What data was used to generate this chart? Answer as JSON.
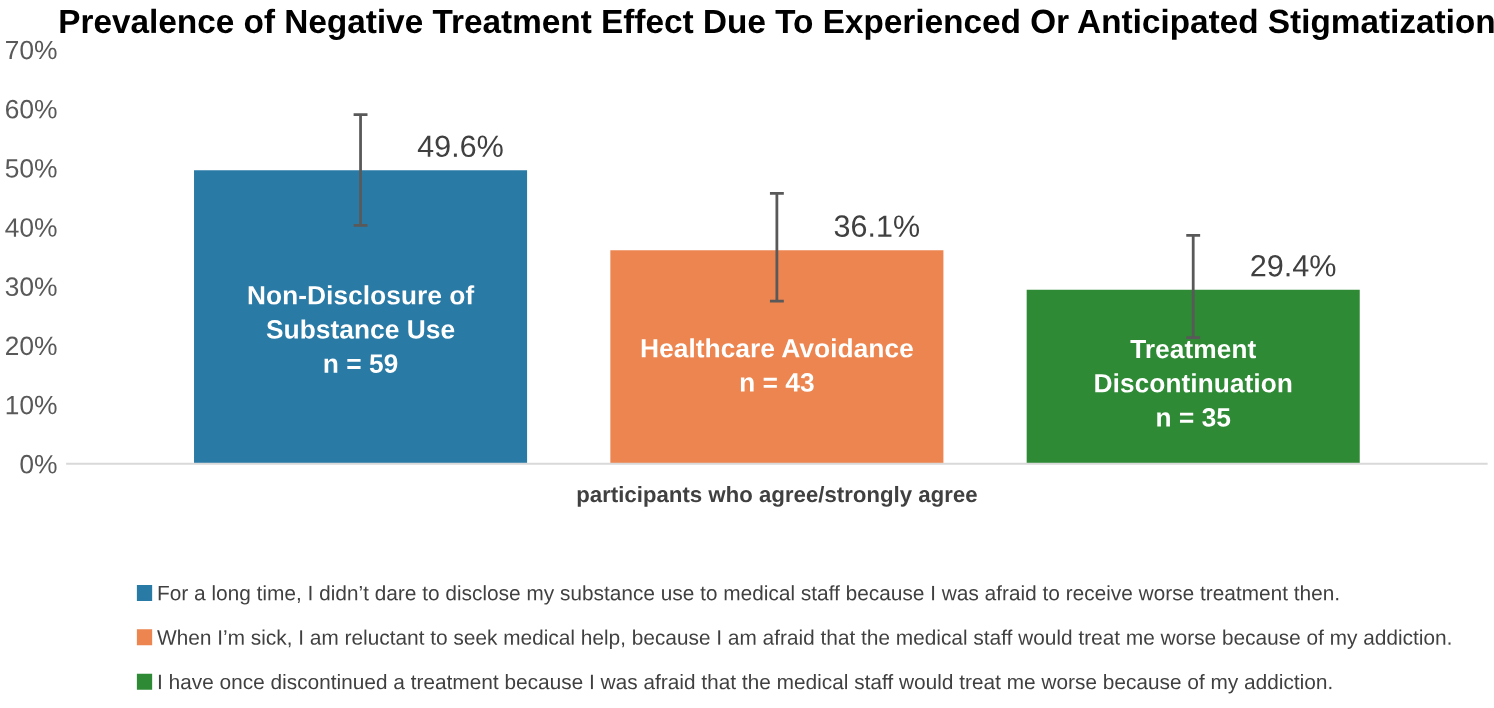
{
  "chart_data": {
    "type": "bar",
    "title": "Prevalence of Negative Treatment Effect Due To Experienced Or Anticipated Stigmatization",
    "categories": [
      "participants who agree/strongly agree"
    ],
    "series": [
      {
        "name": "For a long time, I didn’t dare to disclose my substance use to medical staff because I was afraid to receive worse treatment then.",
        "color": "#2a7aa6",
        "values": [
          49.6
        ],
        "errors": [
          [
            40.3,
            59.0
          ]
        ],
        "value_labels": [
          "49.6%"
        ]
      },
      {
        "name": "When I’m sick, I am reluctant to seek medical help, because I am afraid that the medical staff would treat me worse because of my addiction.",
        "color": "#ec8550",
        "values": [
          36.1
        ],
        "errors": [
          [
            27.5,
            45.7
          ]
        ],
        "value_labels": [
          "36.1%"
        ]
      },
      {
        "name": "I have once discontinued a treatment because I was afraid that the medical staff would treat me worse because of my addiction.",
        "color": "#2f8a36",
        "values": [
          29.4
        ],
        "errors": [
          [
            21.3,
            38.6
          ]
        ],
        "value_labels": [
          "29.4%"
        ]
      }
    ],
    "annotations": [
      "Non-Disclosure of\nSubstance Use\nn = 59",
      "Healthcare Avoidance\nn = 43",
      "Treatment\nDiscontinuation\nn = 35"
    ],
    "ylim": [
      0,
      70
    ],
    "yticks": [
      {
        "value": 0,
        "label": "0%"
      },
      {
        "value": 10,
        "label": "10%"
      },
      {
        "value": 20,
        "label": "20%"
      },
      {
        "value": 30,
        "label": "30%"
      },
      {
        "value": 40,
        "label": "40%"
      },
      {
        "value": 50,
        "label": "50%"
      },
      {
        "value": 60,
        "label": "60%"
      },
      {
        "value": 70,
        "label": "70%"
      }
    ],
    "grid": false,
    "legend": "bottom"
  }
}
